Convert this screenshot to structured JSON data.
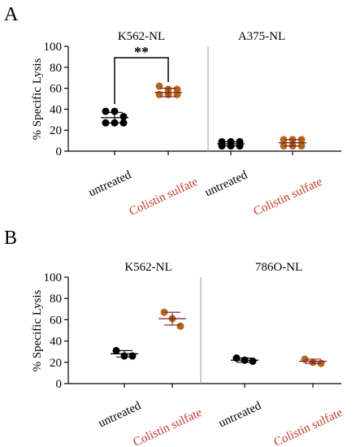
{
  "chart_data": [
    {
      "type": "scatter",
      "panel_letter": "A",
      "ylabel": "% Specific Lysis",
      "ylim": [
        0,
        100
      ],
      "yticks": [
        0,
        20,
        40,
        60,
        80,
        100
      ],
      "categories": [
        "untreated",
        "Colistin sulfate"
      ],
      "category_colors": [
        "#000000",
        "#c0392b"
      ],
      "groups": [
        {
          "label": "K562-NL",
          "series": [
            {
              "category": "untreated",
              "mean": 32,
              "sd": 5,
              "points": [
                38,
                38,
                33,
                27,
                27,
                27
              ],
              "color": "#000000"
            },
            {
              "category": "Colistin sulfate",
              "mean": 56,
              "sd": 4,
              "points": [
                62,
                59,
                59,
                54,
                54,
                54
              ],
              "color": "#b5651d"
            }
          ],
          "annotation": "**"
        },
        {
          "label": "A375-NL",
          "series": [
            {
              "category": "untreated",
              "mean": 7,
              "sd": 2,
              "points": [
                9,
                9,
                9,
                5,
                5,
                5
              ],
              "color": "#000000"
            },
            {
              "category": "Colistin sulfate",
              "mean": 8,
              "sd": 3,
              "points": [
                11,
                11,
                11,
                5,
                5,
                5
              ],
              "color": "#b5651d"
            }
          ]
        }
      ]
    },
    {
      "type": "scatter",
      "panel_letter": "B",
      "ylabel": "% Specific Lysis",
      "ylim": [
        0,
        100
      ],
      "yticks": [
        0,
        20,
        40,
        60,
        80,
        100
      ],
      "categories": [
        "untreated",
        "Colistin sulfate"
      ],
      "category_colors": [
        "#000000",
        "#c0392b"
      ],
      "groups": [
        {
          "label": "K562-NL",
          "series": [
            {
              "category": "untreated",
              "mean": 28,
              "sd": 3,
              "points": [
                31,
                26,
                26
              ],
              "color": "#000000"
            },
            {
              "category": "Colistin sulfate",
              "mean": 61,
              "sd": 6,
              "points": [
                67,
                61,
                54
              ],
              "color": "#b5651d"
            }
          ]
        },
        {
          "label": "786O-NL",
          "series": [
            {
              "category": "untreated",
              "mean": 22,
              "sd": 2,
              "points": [
                24,
                22,
                21
              ],
              "color": "#000000"
            },
            {
              "category": "Colistin sulfate",
              "mean": 21,
              "sd": 2,
              "points": [
                23,
                20,
                19
              ],
              "color": "#b5651d"
            }
          ]
        }
      ]
    }
  ]
}
